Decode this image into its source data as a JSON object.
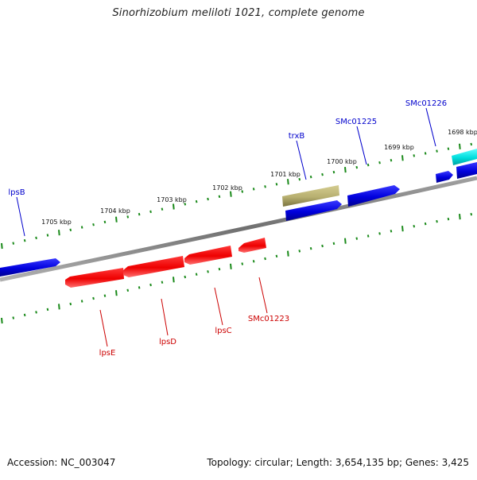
{
  "title": "Sinorhizobium meliloti 1021, complete genome",
  "footer": {
    "accession": "Accession: NC_003047",
    "topology": "Topology: circular; Length: 3,654,135 bp; Genes: 3,425"
  },
  "colors": {
    "backbone": "#808080",
    "tick": "#1a8a1a",
    "forward_gene": "#0000dd",
    "reverse_gene": "#ee0000",
    "trxB": "#b8b070",
    "cyan_gene": "#00dddd",
    "forward_label": "#0000cc",
    "reverse_label": "#cc0000"
  },
  "axis_labels": [
    {
      "text": "1698 kbp",
      "kbp": 1698
    },
    {
      "text": "1699 kbp",
      "kbp": 1699
    },
    {
      "text": "1700 kbp",
      "kbp": 1700
    },
    {
      "text": "1701 kbp",
      "kbp": 1701
    },
    {
      "text": "1702 kbp",
      "kbp": 1702
    },
    {
      "text": "1703 kbp",
      "kbp": 1703
    },
    {
      "text": "1704 kbp",
      "kbp": 1704
    },
    {
      "text": "1705 kbp",
      "kbp": 1705
    }
  ],
  "genes": {
    "forward": [
      {
        "label": "lpsB"
      },
      {
        "label": "trxB"
      },
      {
        "label": "SMc01225"
      },
      {
        "label": "SMc01226"
      }
    ],
    "reverse": [
      {
        "label": "lpsE"
      },
      {
        "label": "lpsD"
      },
      {
        "label": "lpsC"
      },
      {
        "label": "SMc01223"
      }
    ]
  }
}
